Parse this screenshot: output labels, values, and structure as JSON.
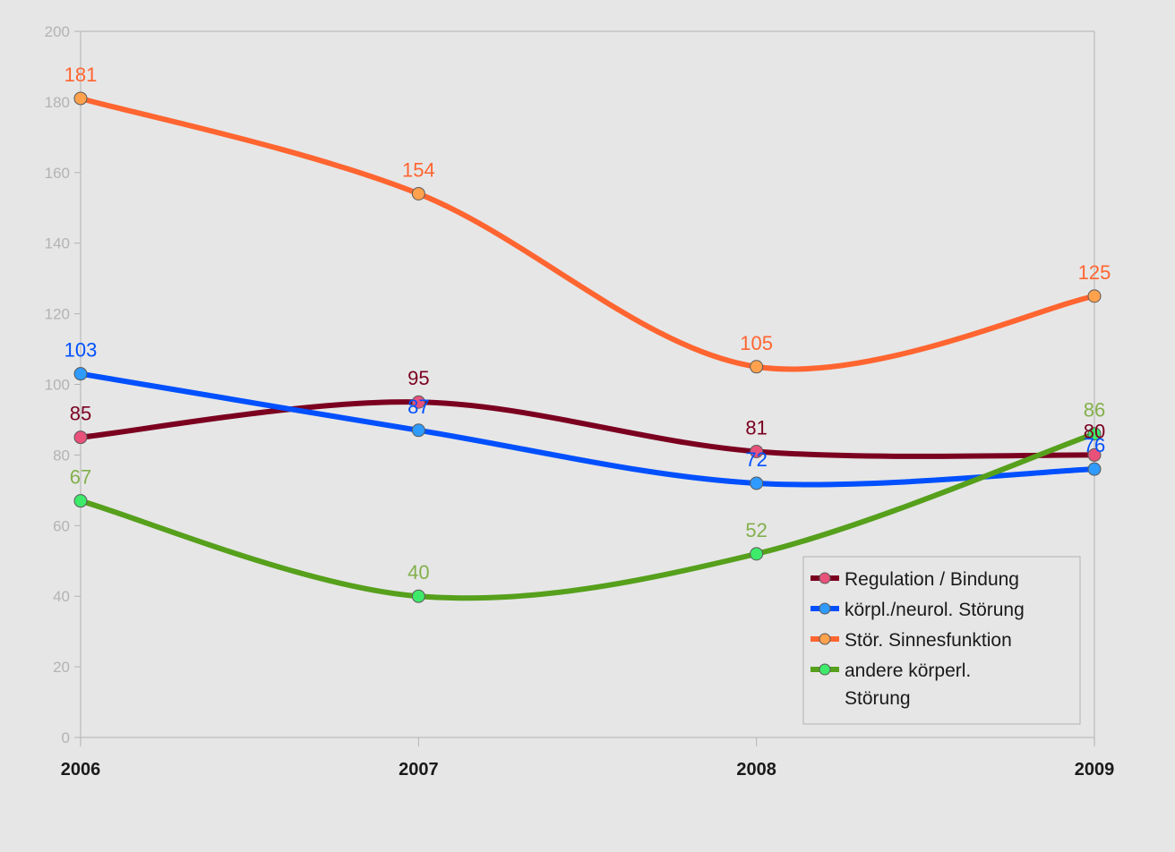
{
  "chart_data": {
    "type": "line",
    "smooth": true,
    "x": [
      "2006",
      "2007",
      "2008",
      "2009"
    ],
    "ylim": [
      0,
      200
    ],
    "y_ticks": [
      0,
      20,
      40,
      60,
      80,
      100,
      120,
      140,
      160,
      180,
      200
    ],
    "grid": false,
    "legend_position": "bottom-right inside plot",
    "series": [
      {
        "name": "Regulation / Bindung",
        "values": [
          85,
          95,
          81,
          80
        ],
        "line_color": "#7b0020",
        "marker_color": "#e8517a",
        "label_color": "#7b0020"
      },
      {
        "name": "körpl./neurol. Störung",
        "values": [
          103,
          87,
          72,
          76
        ],
        "line_color": "#0050ff",
        "marker_color": "#2f9bff",
        "label_color": "#0050ff"
      },
      {
        "name": "Stör. Sinnesfunktion",
        "values": [
          181,
          154,
          105,
          125
        ],
        "line_color": "#ff6530",
        "marker_color": "#ffa14d",
        "label_color": "#ff6530"
      },
      {
        "name": "andere körperl. Störung",
        "legend_lines": [
          "andere körperl.",
          "Störung"
        ],
        "values": [
          67,
          40,
          52,
          86
        ],
        "line_color": "#56a01c",
        "marker_color": "#3eea6a",
        "label_color": "#83b04c"
      }
    ]
  }
}
